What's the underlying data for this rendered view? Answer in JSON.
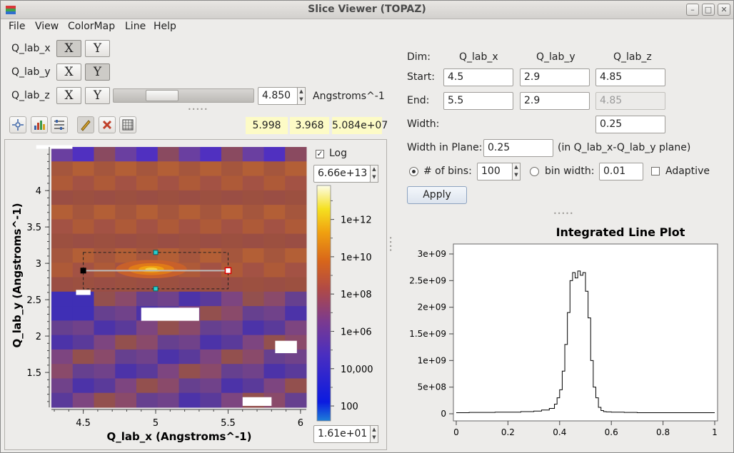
{
  "window": {
    "title": "Slice Viewer (TOPAZ)",
    "buttons": [
      "minimize",
      "maximize",
      "close"
    ]
  },
  "menu": [
    "File",
    "View",
    "ColorMap",
    "Line",
    "Help"
  ],
  "dimensions": [
    {
      "label": "Q_lab_x",
      "x_label": "X",
      "y_label": "Y",
      "x_pressed": true,
      "y_pressed": false
    },
    {
      "label": "Q_lab_y",
      "x_label": "X",
      "y_label": "Y",
      "x_pressed": false,
      "y_pressed": true
    },
    {
      "label": "Q_lab_z",
      "x_label": "X",
      "y_label": "Y",
      "x_pressed": false,
      "y_pressed": false,
      "slider_value": "4.850",
      "slider_fraction": 0.23,
      "unit": "Angstroms^-1"
    }
  ],
  "toolbar": {
    "icons": [
      "zoom-pan-icon",
      "rebin-icon",
      "line-options-icon",
      "draw-line-icon",
      "clear-line-icon",
      "grid-icon"
    ]
  },
  "readouts": [
    "5.998",
    "3.968",
    "5.084e+07"
  ],
  "colorbar": {
    "log_label": "Log",
    "log_checked": true,
    "max_value": "6.66e+13",
    "min_value": "1.61e+01",
    "tick_labels": [
      "1e+12",
      "1e+10",
      "1e+08",
      "1e+06",
      "10,000",
      "100"
    ]
  },
  "slice_plot": {
    "xlabel": "Q_lab_x (Angstroms^-1)",
    "ylabel": "Q_lab_y (Angstroms^-1)",
    "x_ticks": [
      "4.5",
      "5",
      "5.5",
      "6"
    ],
    "y_ticks": [
      "1.5",
      "2",
      "2.5",
      "3",
      "3.5",
      "4"
    ],
    "xlim": [
      4.28,
      6.04
    ],
    "ylim": [
      1.02,
      4.6
    ],
    "line_start": [
      4.5,
      2.9
    ],
    "line_end": [
      5.5,
      2.9
    ],
    "line_width": 0.25
  },
  "line_params": {
    "dim_label": "Dim:",
    "start_label": "Start:",
    "end_label": "End:",
    "width_label": "Width:",
    "width_in_plane_label": "Width in Plane:",
    "headers": [
      "Q_lab_x",
      "Q_lab_y",
      "Q_lab_z"
    ],
    "start_values": [
      "4.5",
      "2.9",
      "4.85"
    ],
    "end_values": [
      "5.5",
      "2.9",
      "4.85"
    ],
    "width_value": "0.25",
    "width_in_plane_value": "0.25",
    "plane_note": "(in Q_lab_x-Q_lab_y plane)",
    "bins_label": "# of bins:",
    "bins_value": "100",
    "bins_selected": true,
    "bin_width_label": "bin width:",
    "bin_width_value": "0.01",
    "adaptive_label": "Adaptive",
    "adaptive_checked": false,
    "apply_label": "Apply"
  },
  "chart_data": {
    "type": "line",
    "title": "Integrated Line Plot",
    "xlabel": "",
    "ylabel": "",
    "xlim": [
      0,
      1
    ],
    "ylim": [
      0,
      3000000000
    ],
    "x_ticks": [
      "0",
      "0.2",
      "0.4",
      "0.6",
      "0.8",
      "1"
    ],
    "y_ticks": [
      "0",
      "5e+08",
      "1e+09",
      "1.5e+09",
      "2e+09",
      "2.5e+09",
      "3e+09"
    ],
    "grid": false,
    "x": [
      0,
      0.05,
      0.1,
      0.15,
      0.2,
      0.25,
      0.3,
      0.33,
      0.36,
      0.38,
      0.39,
      0.4,
      0.41,
      0.42,
      0.43,
      0.44,
      0.45,
      0.46,
      0.47,
      0.48,
      0.49,
      0.5,
      0.51,
      0.52,
      0.53,
      0.54,
      0.55,
      0.56,
      0.57,
      0.58,
      0.6,
      0.65,
      0.7,
      0.8,
      0.9,
      1.0
    ],
    "y": [
      20000000,
      25000000,
      25000000,
      30000000,
      30000000,
      40000000,
      50000000,
      70000000,
      100000000,
      180000000,
      300000000,
      450000000,
      800000000,
      1300000000,
      1900000000,
      2500000000,
      2650000000,
      2550000000,
      2680000000,
      2600000000,
      2650000000,
      2300000000,
      1800000000,
      1000000000,
      500000000,
      300000000,
      120000000,
      60000000,
      40000000,
      35000000,
      30000000,
      25000000,
      20000000,
      20000000,
      20000000,
      20000000
    ]
  }
}
